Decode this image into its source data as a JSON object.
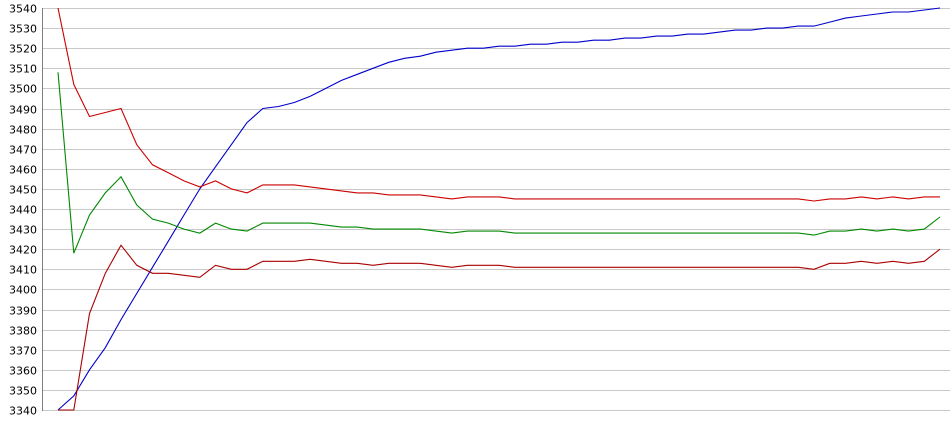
{
  "chart_data": {
    "type": "line",
    "title": "",
    "xlabel": "",
    "ylabel": "",
    "ylim": [
      3340,
      3540
    ],
    "ytick_step": 10,
    "grid": true,
    "legend": "none",
    "x": [
      0,
      1,
      2,
      3,
      4,
      5,
      6,
      7,
      8,
      9,
      10,
      11,
      12,
      13,
      14,
      15,
      16,
      17,
      18,
      19,
      20,
      21,
      22,
      23,
      24,
      25,
      26,
      27,
      28,
      29,
      30,
      31,
      32,
      33,
      34,
      35,
      36,
      37,
      38,
      39,
      40,
      41,
      42,
      43,
      44,
      45,
      46,
      47,
      48,
      49,
      50,
      51,
      52,
      53,
      54,
      55,
      56
    ],
    "series": [
      {
        "color": "#0000cc",
        "values": [
          3340,
          3347,
          3360,
          3371,
          3385,
          3398,
          3411,
          3424,
          3437,
          3450,
          3461,
          3472,
          3483,
          3490,
          3491,
          3493,
          3496,
          3500,
          3504,
          3507,
          3510,
          3513,
          3515,
          3516,
          3518,
          3519,
          3520,
          3520,
          3521,
          3521,
          3522,
          3522,
          3523,
          3523,
          3524,
          3524,
          3525,
          3525,
          3526,
          3526,
          3527,
          3527,
          3528,
          3529,
          3529,
          3530,
          3530,
          3531,
          3531,
          3533,
          3535,
          3536,
          3537,
          3538,
          3538,
          3539,
          3540
        ]
      },
      {
        "color": "#cc0000",
        "values": [
          3540,
          3502,
          3486,
          3488,
          3490,
          3472,
          3462,
          3458,
          3454,
          3451,
          3454,
          3450,
          3448,
          3452,
          3452,
          3452,
          3451,
          3450,
          3449,
          3448,
          3448,
          3447,
          3447,
          3447,
          3446,
          3445,
          3446,
          3446,
          3446,
          3445,
          3445,
          3445,
          3445,
          3445,
          3445,
          3445,
          3445,
          3445,
          3445,
          3445,
          3445,
          3445,
          3445,
          3445,
          3445,
          3445,
          3445,
          3445,
          3444,
          3445,
          3445,
          3446,
          3445,
          3446,
          3445,
          3446,
          3446
        ]
      },
      {
        "color": "#008800",
        "values": [
          3508,
          3418,
          3437,
          3448,
          3456,
          3442,
          3435,
          3433,
          3430,
          3428,
          3433,
          3430,
          3429,
          3433,
          3433,
          3433,
          3433,
          3432,
          3431,
          3431,
          3430,
          3430,
          3430,
          3430,
          3429,
          3428,
          3429,
          3429,
          3429,
          3428,
          3428,
          3428,
          3428,
          3428,
          3428,
          3428,
          3428,
          3428,
          3428,
          3428,
          3428,
          3428,
          3428,
          3428,
          3428,
          3428,
          3428,
          3428,
          3427,
          3429,
          3429,
          3430,
          3429,
          3430,
          3429,
          3430,
          3436
        ]
      },
      {
        "color": "#aa0000",
        "values": [
          3340,
          3340,
          3388,
          3408,
          3422,
          3412,
          3408,
          3408,
          3407,
          3406,
          3412,
          3410,
          3410,
          3414,
          3414,
          3414,
          3415,
          3414,
          3413,
          3413,
          3412,
          3413,
          3413,
          3413,
          3412,
          3411,
          3412,
          3412,
          3412,
          3411,
          3411,
          3411,
          3411,
          3411,
          3411,
          3411,
          3411,
          3411,
          3411,
          3411,
          3411,
          3411,
          3411,
          3411,
          3411,
          3411,
          3411,
          3411,
          3410,
          3413,
          3413,
          3414,
          3413,
          3414,
          3413,
          3414,
          3420
        ]
      }
    ]
  }
}
